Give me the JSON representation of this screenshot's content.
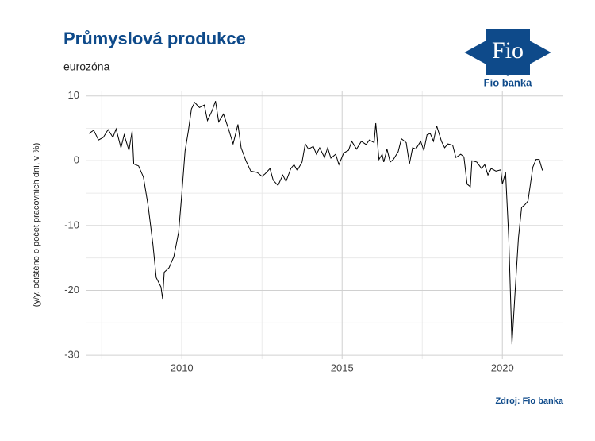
{
  "chart_data": {
    "type": "line",
    "title": "Průmyslová produkce",
    "subtitle": "eurozóna",
    "ylabel": "(y/y, očištěno o počet pracovních dní, v %)",
    "source": "Zdroj: Fio banka",
    "color": "#000000",
    "x": [
      2007.1,
      2007.25,
      2007.4,
      2007.55,
      2007.7,
      2007.85,
      2007.95,
      2008.1,
      2008.2,
      2008.35,
      2008.45,
      2008.5,
      2008.65,
      2008.8,
      2008.95,
      2009.1,
      2009.2,
      2009.35,
      2009.4,
      2009.45,
      2009.6,
      2009.75,
      2009.9,
      2010.0,
      2010.1,
      2010.2,
      2010.3,
      2010.4,
      2010.55,
      2010.7,
      2010.8,
      2010.95,
      2011.05,
      2011.15,
      2011.3,
      2011.45,
      2011.6,
      2011.75,
      2011.85,
      2012.0,
      2012.15,
      2012.35,
      2012.5,
      2012.6,
      2012.75,
      2012.85,
      2013.0,
      2013.15,
      2013.25,
      2013.4,
      2013.5,
      2013.6,
      2013.75,
      2013.85,
      2013.95,
      2014.1,
      2014.2,
      2014.3,
      2014.45,
      2014.55,
      2014.65,
      2014.8,
      2014.9,
      2015.05,
      2015.2,
      2015.3,
      2015.45,
      2015.6,
      2015.75,
      2015.85,
      2016.0,
      2016.05,
      2016.15,
      2016.25,
      2016.3,
      2016.4,
      2016.5,
      2016.6,
      2016.75,
      2016.85,
      2017.0,
      2017.1,
      2017.2,
      2017.3,
      2017.45,
      2017.55,
      2017.65,
      2017.75,
      2017.85,
      2017.95,
      2018.1,
      2018.2,
      2018.3,
      2018.45,
      2018.55,
      2018.7,
      2018.8,
      2018.9,
      2019.0,
      2019.05,
      2019.2,
      2019.35,
      2019.45,
      2019.55,
      2019.65,
      2019.8,
      2019.95,
      2020.0,
      2020.1,
      2020.2,
      2020.3,
      2020.4,
      2020.5,
      2020.6,
      2020.7,
      2020.8,
      2020.95,
      2021.05,
      2021.15,
      2021.25
    ],
    "values": [
      4.2,
      4.7,
      3.2,
      3.6,
      4.8,
      3.6,
      4.9,
      2.0,
      4.0,
      1.6,
      4.6,
      -0.5,
      -0.8,
      -2.5,
      -7,
      -13,
      -18,
      -19.5,
      -21.3,
      -17.2,
      -16.5,
      -14.8,
      -11,
      -5,
      1.5,
      4.5,
      8.0,
      9.0,
      8.2,
      8.6,
      6.2,
      7.8,
      9.2,
      6.0,
      7.2,
      5.0,
      2.6,
      5.6,
      2.0,
      0.0,
      -1.6,
      -1.8,
      -2.4,
      -2.0,
      -1.2,
      -3.0,
      -3.8,
      -2.2,
      -3.2,
      -1.2,
      -0.6,
      -1.5,
      -0.2,
      2.6,
      1.8,
      2.2,
      1.0,
      2.0,
      0.5,
      2.0,
      0.4,
      1.0,
      -0.6,
      1.2,
      1.6,
      3.0,
      1.8,
      3.0,
      2.5,
      3.2,
      2.8,
      5.8,
      0.2,
      1.0,
      -0.2,
      1.8,
      -0.2,
      0.2,
      1.4,
      3.4,
      2.8,
      -0.5,
      2.0,
      1.8,
      3.0,
      1.6,
      4.0,
      4.2,
      3.0,
      5.4,
      3.0,
      2.0,
      2.6,
      2.4,
      0.5,
      1.0,
      0.6,
      -3.6,
      -4.0,
      0.0,
      -0.2,
      -1.2,
      -0.6,
      -2.2,
      -1.2,
      -1.6,
      -1.4,
      -3.6,
      -1.8,
      -12,
      -28.3,
      -20,
      -12,
      -7.2,
      -6.8,
      -6.2,
      -1.0,
      0.2,
      0.2,
      -1.5
    ],
    "xlim": [
      2007.0,
      2021.9
    ],
    "xticks": [
      2010,
      2015,
      2020
    ],
    "xminor": [
      2007.5,
      2012.5,
      2017.5
    ],
    "ylim": [
      -30.6,
      10.7
    ],
    "yticks": [
      10,
      0,
      -10,
      -20,
      -30
    ],
    "yminor": [
      5,
      -5,
      -15,
      -25
    ],
    "grid": true
  },
  "logo": {
    "mark": "Fio",
    "name": "Fio banka"
  }
}
